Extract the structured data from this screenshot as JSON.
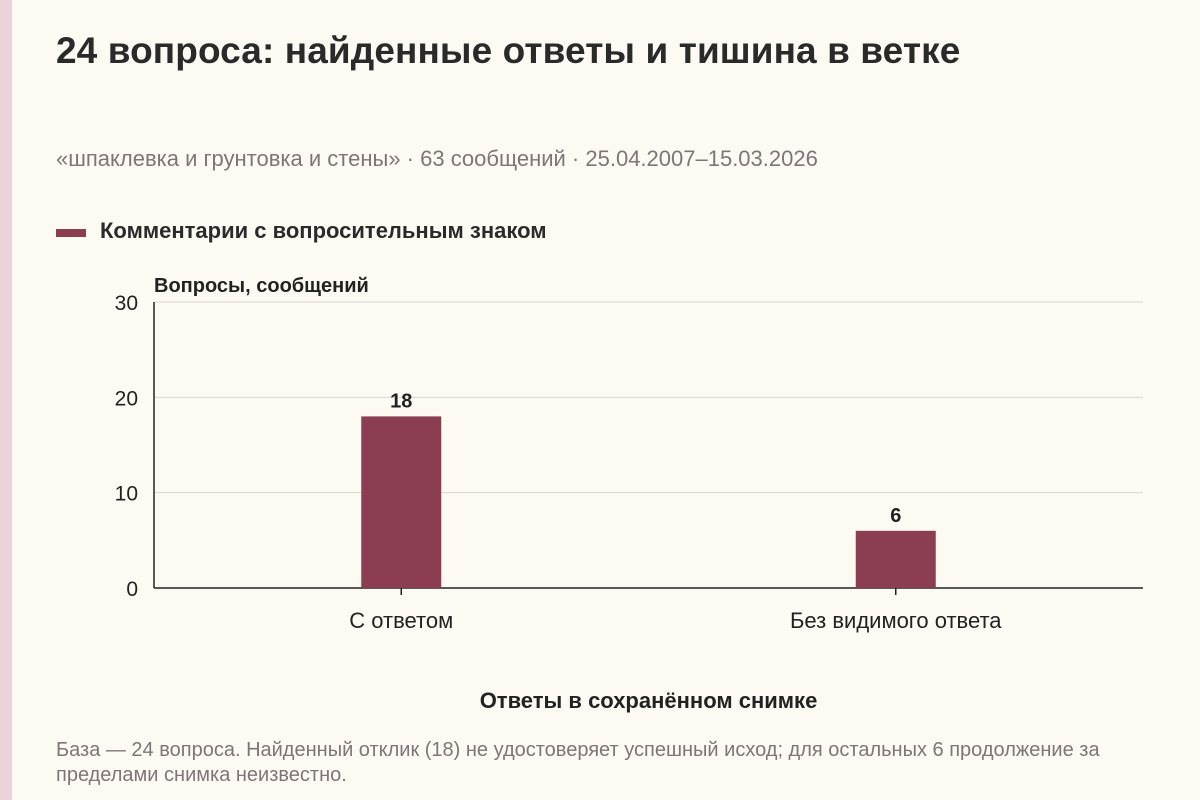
{
  "header": {
    "title": "24 вопроса: найденные ответы и тишина в ветке",
    "subtitle": "«шпаклевка и грунтовка и стены» · 63 сообщений · 25.04.2007–15.03.2026"
  },
  "colors": {
    "background": "#fdfaf3",
    "accent_strip": "#ecd2d9",
    "bar": "#8b3d52",
    "grid": "#d9d6cf",
    "axis": "#222222"
  },
  "chart_data": {
    "type": "bar",
    "categories": [
      "С ответом",
      "Без видимого ответа"
    ],
    "series": [
      {
        "name": "Комментарии с вопросительным знаком",
        "values": [
          18,
          6
        ]
      }
    ],
    "value_labels": [
      "18",
      "6"
    ],
    "ylabel": "Вопросы, сообщений",
    "xlabel": "Ответы в сохранённом снимке",
    "ylim": [
      0,
      30
    ],
    "yticks": [
      0,
      10,
      20,
      30
    ],
    "ytick_labels": [
      "0",
      "10",
      "20",
      "30"
    ],
    "grid": true,
    "legend_position": "top-left"
  },
  "footnote": "База — 24 вопроса. Найденный отклик (18) не удостоверяет успешный исход; для остальных 6 продолжение за пределами снимка неизвестно."
}
